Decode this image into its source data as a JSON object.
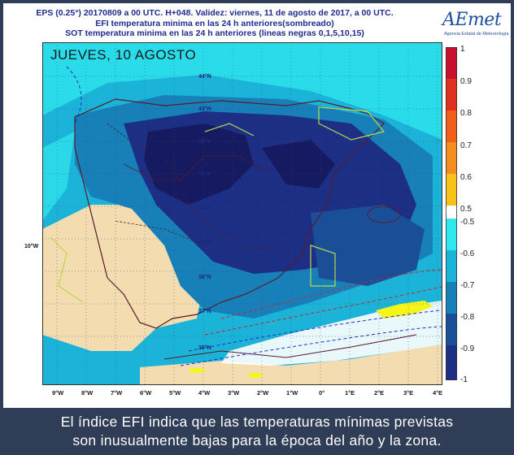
{
  "header": {
    "line1": "EPS (0.25°) 20170809 a 00 UTC.  H+048. Validez: viernes, 11 de agosto de 2017,  a  00 UTC.",
    "line2": "EFI temperatura minima en las 24 h anteriores(sombreado)",
    "line3": "SOT temperatura minima en las 24 h anteriores (lineas negras 0,1,5,10,15)"
  },
  "logo": {
    "name": "AEmet",
    "subtitle": "Agencia Estatal de Meteorología"
  },
  "map": {
    "overlay_title": "JUEVES, 10 AGOSTO",
    "lat_labels": [
      "44°N",
      "43°N",
      "42°N",
      "41°N",
      "40°N",
      "39°N",
      "38°N",
      "37°N",
      "36°N"
    ],
    "lon_side_label": "10°W",
    "lon_labels": [
      "9°W",
      "8°W",
      "7°W",
      "6°W",
      "5°W",
      "4°W",
      "3°W",
      "2°W",
      "1°W",
      "0°",
      "1°E",
      "2°E",
      "3°E",
      "4°E"
    ]
  },
  "colorbar": {
    "labels": [
      "1",
      "0.9",
      "0.8",
      "0.7",
      "0.6",
      "0.5",
      "-0.5",
      "-0.6",
      "-0.7",
      "-0.8",
      "-0.9",
      "-1"
    ],
    "colors": [
      "#c8102e",
      "#e0301e",
      "#f0601a",
      "#f58d1e",
      "#f8c21a",
      "#f5f51a",
      "#ffffff",
      "#30e8f0",
      "#1bb3d8",
      "#1780b8",
      "#1a4f98",
      "#1c2f84",
      "#161a60"
    ]
  },
  "caption": {
    "line1": "El índice EFI indica que las temperaturas mínimas previstas",
    "line2": "son inusualmente bajas para la época del año y la zona."
  }
}
